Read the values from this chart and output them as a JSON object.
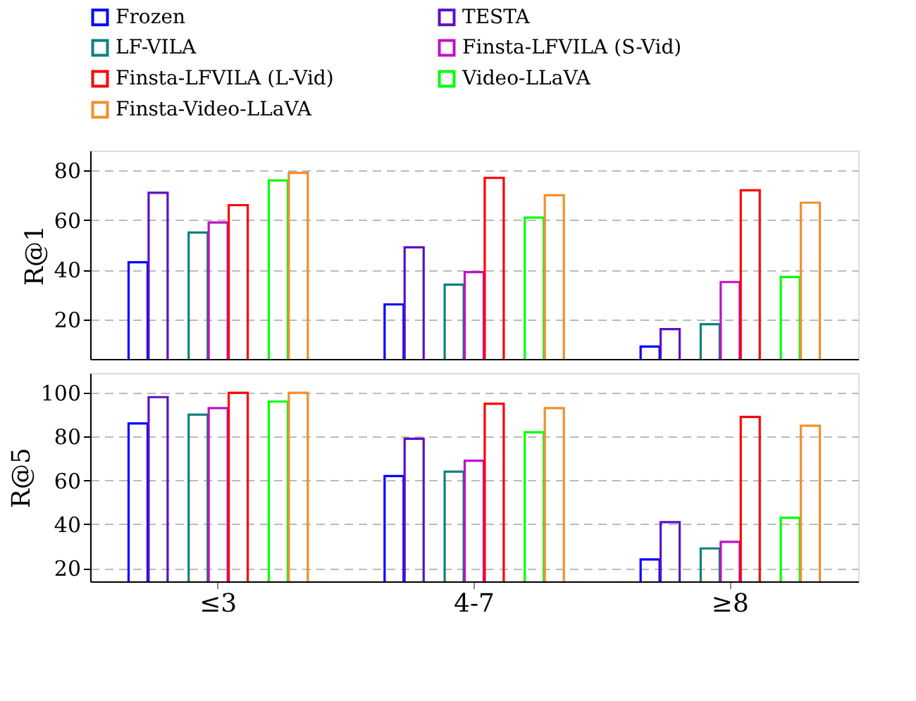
{
  "chart_data": [
    {
      "type": "bar",
      "ylabel": "R@1",
      "categories": [
        "≤3",
        "4-7",
        "≥8"
      ],
      "ylim": [
        4,
        88
      ],
      "yticks": [
        20,
        40,
        60,
        80
      ],
      "grid": "y",
      "legend": "top",
      "tick_labels": "y",
      "series": [
        {
          "name": "Frozen",
          "color": "#0000ff",
          "values": [
            43,
            26,
            9
          ]
        },
        {
          "name": "TESTA",
          "color": "#5a10c8",
          "values": [
            71,
            49,
            16
          ]
        },
        {
          "name": "LF-VILA",
          "color": "#0e8080",
          "values": [
            55,
            34,
            18
          ]
        },
        {
          "name": "Finsta-LFVILA (S-Vid)",
          "color": "#c010c8",
          "values": [
            59,
            39,
            35
          ]
        },
        {
          "name": "Finsta-LFVILA (L-Vid)",
          "color": "#ff0000",
          "values": [
            66,
            77,
            72
          ]
        },
        {
          "name": "Video-LLaVA",
          "color": "#00ff00",
          "values": [
            76,
            61,
            37
          ]
        },
        {
          "name": "Finsta-Video-LLaVA",
          "color": "#f0902a",
          "values": [
            79,
            70,
            67
          ]
        }
      ]
    },
    {
      "type": "bar",
      "ylabel": "R@5",
      "categories": [
        "≤3",
        "4-7",
        "≥8"
      ],
      "ylim": [
        14,
        109
      ],
      "yticks": [
        20,
        40,
        60,
        80,
        100
      ],
      "grid": "y",
      "legend": "top",
      "series": [
        {
          "name": "Frozen",
          "color": "#0000ff",
          "values": [
            86,
            62,
            24
          ]
        },
        {
          "name": "TESTA",
          "color": "#5a10c8",
          "values": [
            98,
            79,
            41
          ]
        },
        {
          "name": "LF-VILA",
          "color": "#0e8080",
          "values": [
            90,
            64,
            29
          ]
        },
        {
          "name": "Finsta-LFVILA (S-Vid)",
          "color": "#c010c8",
          "values": [
            93,
            69,
            32
          ]
        },
        {
          "name": "Finsta-LFVILA (L-Vid)",
          "color": "#ff0000",
          "values": [
            100,
            95,
            89
          ]
        },
        {
          "name": "Video-LLaVA",
          "color": "#00ff00",
          "values": [
            96,
            82,
            43
          ]
        },
        {
          "name": "Finsta-Video-LLaVA",
          "color": "#f0902a",
          "values": [
            100,
            93,
            85
          ]
        }
      ]
    }
  ]
}
